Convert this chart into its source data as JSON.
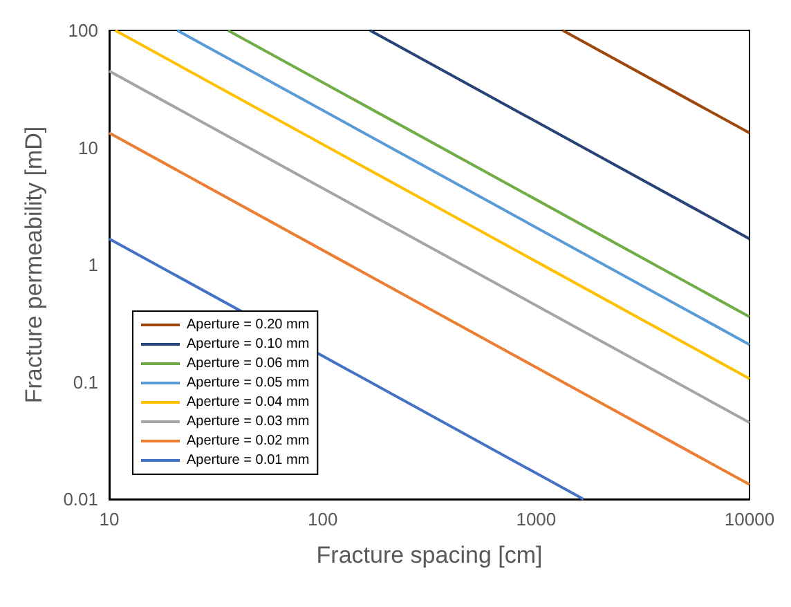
{
  "chart_data": {
    "type": "line",
    "xlabel": "Fracture spacing [cm]",
    "ylabel": "Fracture permeability [mD]",
    "log": "xy",
    "xlim": [
      10,
      10000
    ],
    "ylim": [
      0.01,
      100
    ],
    "xticks": [
      10,
      100,
      1000,
      10000
    ],
    "yticks": [
      0.01,
      0.1,
      1,
      10,
      100
    ],
    "grid": false,
    "legend": "bottom left",
    "series": [
      {
        "name": "Aperture = 0.20 mm",
        "color": "#9e480e",
        "x": [
          1333,
          10000
        ],
        "values": [
          100,
          13.33
        ]
      },
      {
        "name": "Aperture = 0.10 mm",
        "color": "#264478",
        "x": [
          166.7,
          10000
        ],
        "values": [
          100,
          1.667
        ]
      },
      {
        "name": "Aperture = 0.06 mm",
        "color": "#70ad47",
        "x": [
          36,
          10000
        ],
        "values": [
          100,
          0.36
        ]
      },
      {
        "name": "Aperture = 0.05 mm",
        "color": "#5b9bd5",
        "x": [
          20.83,
          10000
        ],
        "values": [
          100,
          0.2083
        ]
      },
      {
        "name": "Aperture = 0.04 mm",
        "color": "#ffc000",
        "x": [
          10.67,
          10000
        ],
        "values": [
          100,
          0.1067
        ]
      },
      {
        "name": "Aperture = 0.03 mm",
        "color": "#a5a5a5",
        "x": [
          10,
          10000
        ],
        "values": [
          45,
          0.045
        ]
      },
      {
        "name": "Aperture = 0.02 mm",
        "color": "#ed7d31",
        "x": [
          10,
          10000
        ],
        "values": [
          13.33,
          0.01333
        ]
      },
      {
        "name": "Aperture = 0.01 mm",
        "color": "#4472c4",
        "x": [
          10,
          1667
        ],
        "values": [
          1.667,
          0.01
        ]
      }
    ]
  }
}
